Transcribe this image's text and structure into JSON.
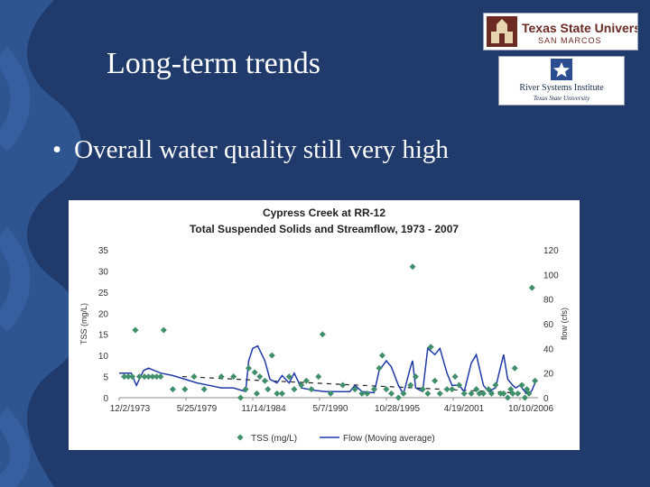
{
  "slide": {
    "title": "Long-term trends",
    "bullet": "Overall water quality still very high",
    "bullet_glyph": "•",
    "colors": {
      "background": "#1f3a6b",
      "wave": "#2f5591",
      "tss_marker": "#3f8f6a",
      "flow_line": "#1f3aa8"
    }
  },
  "logos": {
    "texas_state": {
      "line1": "Texas State University",
      "line2": "SAN MARCOS",
      "icon": "building-seal-icon"
    },
    "rsi": {
      "line1": "River Systems Institute",
      "line2": "Texas State University",
      "icon": "star-icon"
    }
  },
  "chart_data": {
    "type": "scatter",
    "title": "Cypress Creek at RR-12",
    "subtitle": "Total Suspended Solids and Streamflow, 1973 - 2007",
    "ylabel": "TSS (mg/L)",
    "y2label": "flow (cfs)",
    "ylim": [
      0,
      35
    ],
    "y2lim": [
      0,
      120
    ],
    "x_ticks": [
      "12/2/1973",
      "5/25/1979",
      "11/14/1984",
      "5/7/1990",
      "10/28/1995",
      "4/19/2001",
      "10/10/2006"
    ],
    "y_ticks": [
      "35",
      "30",
      "25",
      "20",
      "15",
      "10",
      "5",
      "0"
    ],
    "y2_ticks": [
      "120",
      "100",
      "80",
      "60",
      "40",
      "20",
      "0"
    ],
    "legend": {
      "placement": "bottom"
    },
    "series": [
      {
        "name": "TSS (mg/L)",
        "kind": "scatter",
        "points": [
          [
            "1973-06",
            5
          ],
          [
            "1973-10",
            5
          ],
          [
            "1974-02",
            5
          ],
          [
            "1974-05",
            16
          ],
          [
            "1974-09",
            5
          ],
          [
            "1975-02",
            5
          ],
          [
            "1975-06",
            5
          ],
          [
            "1975-10",
            5
          ],
          [
            "1976-02",
            5
          ],
          [
            "1976-06",
            5
          ],
          [
            "1976-09",
            16
          ],
          [
            "1977-06",
            2
          ],
          [
            "1978-06",
            2
          ],
          [
            "1979-03",
            5
          ],
          [
            "1980-01",
            2
          ],
          [
            "1981-06",
            5
          ],
          [
            "1982-06",
            5
          ],
          [
            "1983-01",
            0
          ],
          [
            "1983-06",
            2
          ],
          [
            "1983-09",
            7
          ],
          [
            "1984-03",
            6
          ],
          [
            "1984-05",
            1
          ],
          [
            "1984-08",
            5
          ],
          [
            "1985-01",
            4
          ],
          [
            "1985-04",
            2
          ],
          [
            "1985-08",
            10
          ],
          [
            "1986-01",
            1
          ],
          [
            "1986-06",
            1
          ],
          [
            "1987-01",
            5
          ],
          [
            "1987-06",
            2
          ],
          [
            "1988-01",
            3
          ],
          [
            "1988-06",
            4
          ],
          [
            "1988-11",
            2
          ],
          [
            "1989-06",
            5
          ],
          [
            "1989-10",
            15
          ],
          [
            "1990-06",
            1
          ],
          [
            "1991-06",
            3
          ],
          [
            "1992-06",
            2
          ],
          [
            "1993-01",
            1
          ],
          [
            "1993-06",
            1
          ],
          [
            "1994-01",
            2
          ],
          [
            "1994-06",
            7
          ],
          [
            "1994-09",
            10
          ],
          [
            "1995-01",
            2
          ],
          [
            "1995-06",
            1
          ],
          [
            "1996-01",
            0
          ],
          [
            "1996-06",
            1
          ],
          [
            "1997-01",
            3
          ],
          [
            "1997-03",
            31
          ],
          [
            "1997-06",
            5
          ],
          [
            "1998-01",
            2
          ],
          [
            "1998-06",
            1
          ],
          [
            "1998-09",
            12
          ],
          [
            "1999-01",
            4
          ],
          [
            "1999-06",
            1
          ],
          [
            "2000-01",
            2
          ],
          [
            "2000-06",
            2
          ],
          [
            "2000-09",
            5
          ],
          [
            "2001-01",
            3
          ],
          [
            "2001-06",
            1
          ],
          [
            "2002-01",
            1
          ],
          [
            "2002-06",
            2
          ],
          [
            "2002-09",
            1
          ],
          [
            "2003-01",
            1
          ],
          [
            "2003-06",
            2
          ],
          [
            "2003-09",
            1
          ],
          [
            "2004-01",
            3
          ],
          [
            "2004-06",
            1
          ],
          [
            "2004-09",
            1
          ],
          [
            "2005-01",
            0
          ],
          [
            "2005-04",
            2
          ],
          [
            "2005-06",
            1
          ],
          [
            "2005-08",
            7
          ],
          [
            "2005-11",
            1
          ],
          [
            "2006-03",
            3
          ],
          [
            "2006-06",
            0
          ],
          [
            "2006-08",
            2
          ],
          [
            "2006-10",
            1
          ],
          [
            "2007-01",
            26
          ],
          [
            "2007-04",
            4
          ]
        ]
      },
      {
        "name": "Flow (Moving average)",
        "kind": "line",
        "axis": "y2",
        "points": [
          [
            "1973-01",
            20
          ],
          [
            "1974-01",
            20
          ],
          [
            "1974-06",
            10
          ],
          [
            "1975-01",
            22
          ],
          [
            "1975-06",
            24
          ],
          [
            "1976-06",
            20
          ],
          [
            "1977-06",
            18
          ],
          [
            "1978-06",
            15
          ],
          [
            "1979-06",
            12
          ],
          [
            "1980-06",
            10
          ],
          [
            "1981-06",
            8
          ],
          [
            "1982-06",
            8
          ],
          [
            "1983-06",
            5
          ],
          [
            "1983-09",
            30
          ],
          [
            "1984-01",
            40
          ],
          [
            "1984-06",
            42
          ],
          [
            "1985-01",
            30
          ],
          [
            "1985-06",
            15
          ],
          [
            "1986-01",
            12
          ],
          [
            "1986-06",
            18
          ],
          [
            "1987-01",
            12
          ],
          [
            "1987-06",
            20
          ],
          [
            "1988-01",
            8
          ],
          [
            "1989-01",
            6
          ],
          [
            "1990-01",
            5
          ],
          [
            "1991-01",
            5
          ],
          [
            "1992-01",
            5
          ],
          [
            "1992-06",
            10
          ],
          [
            "1993-01",
            5
          ],
          [
            "1994-01",
            4
          ],
          [
            "1994-06",
            22
          ],
          [
            "1995-01",
            30
          ],
          [
            "1995-06",
            25
          ],
          [
            "1996-01",
            10
          ],
          [
            "1996-06",
            3
          ],
          [
            "1997-01",
            25
          ],
          [
            "1997-03",
            30
          ],
          [
            "1997-06",
            8
          ],
          [
            "1998-01",
            5
          ],
          [
            "1998-06",
            40
          ],
          [
            "1999-01",
            35
          ],
          [
            "1999-06",
            40
          ],
          [
            "2000-01",
            20
          ],
          [
            "2000-06",
            10
          ],
          [
            "2001-01",
            10
          ],
          [
            "2001-06",
            5
          ],
          [
            "2002-01",
            28
          ],
          [
            "2002-06",
            35
          ],
          [
            "2003-01",
            10
          ],
          [
            "2003-06",
            5
          ],
          [
            "2004-01",
            8
          ],
          [
            "2004-06",
            25
          ],
          [
            "2004-09",
            35
          ],
          [
            "2005-01",
            15
          ],
          [
            "2005-06",
            10
          ],
          [
            "2005-09",
            8
          ],
          [
            "2006-01",
            10
          ],
          [
            "2006-06",
            5
          ],
          [
            "2006-10",
            3
          ],
          [
            "2007-01",
            6
          ],
          [
            "2007-04",
            12
          ]
        ]
      }
    ]
  }
}
